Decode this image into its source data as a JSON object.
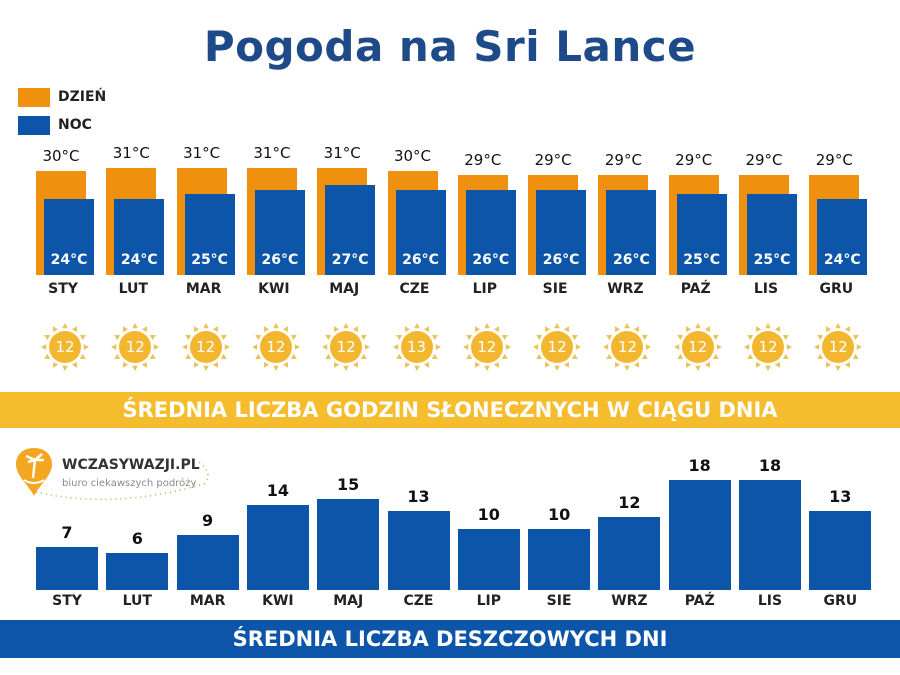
{
  "title": "Pogoda na Sri Lance",
  "legend": [
    {
      "label": "DZIEŃ",
      "color": "#f0900f"
    },
    {
      "label": "NOC",
      "color": "#0d55a8"
    }
  ],
  "logo": {
    "name": "WCZASYWAZJI.PL",
    "tagline": "biuro ciekawszych podróży"
  },
  "sunshine_band": "ŚREDNIA LICZBA GODZIN SŁONECZNYCH W CIĄGU DNIA",
  "rain_band": "ŚREDNIA LICZBA DESZCZOWYCH DNI",
  "colors": {
    "day": "#f0900f",
    "night": "#0d55a8",
    "sun": "#f3b72f",
    "sun_ray": "#e9c35a",
    "yellow_band": "#f5bd2d",
    "blue_band": "#0d55a8",
    "title": "#1f4a8a"
  },
  "chart_data": [
    {
      "type": "bar",
      "categories": [
        "STY",
        "LUT",
        "MAR",
        "KWI",
        "MAJ",
        "CZE",
        "LIP",
        "SIE",
        "WRZ",
        "PAŹ",
        "LIS",
        "GRU"
      ],
      "series": [
        {
          "name": "DZIEŃ",
          "values": [
            30,
            31,
            31,
            31,
            31,
            30,
            29,
            29,
            29,
            29,
            29,
            29
          ],
          "labels": [
            "30°C",
            "31°C",
            "31°C",
            "31°C",
            "31°C",
            "30°C",
            "29°C",
            "29°C",
            "29°C",
            "29°C",
            "29°C",
            "29°C"
          ]
        },
        {
          "name": "NOC",
          "values": [
            24,
            24,
            25,
            26,
            27,
            26,
            26,
            26,
            26,
            25,
            25,
            24
          ],
          "labels": [
            "24°C",
            "24°C",
            "25°C",
            "26°C",
            "27°C",
            "26°C",
            "26°C",
            "26°C",
            "26°C",
            "25°C",
            "25°C",
            "24°C"
          ]
        }
      ]
    },
    {
      "type": "table",
      "title": "ŚREDNIA LICZBA GODZIN SŁONECZNYCH W CIĄGU DNIA",
      "categories": [
        "STY",
        "LUT",
        "MAR",
        "KWI",
        "MAJ",
        "CZE",
        "LIP",
        "SIE",
        "WRZ",
        "PAŹ",
        "LIS",
        "GRU"
      ],
      "values": [
        12,
        12,
        12,
        12,
        12,
        13,
        12,
        12,
        12,
        12,
        12,
        12
      ]
    },
    {
      "type": "bar",
      "title": "ŚREDNIA LICZBA DESZCZOWYCH DNI",
      "categories": [
        "STY",
        "LUT",
        "MAR",
        "KWI",
        "MAJ",
        "CZE",
        "LIP",
        "SIE",
        "WRZ",
        "PAŹ",
        "LIS",
        "GRU"
      ],
      "values": [
        7,
        6,
        9,
        14,
        15,
        13,
        10,
        10,
        12,
        18,
        18,
        13
      ]
    }
  ]
}
